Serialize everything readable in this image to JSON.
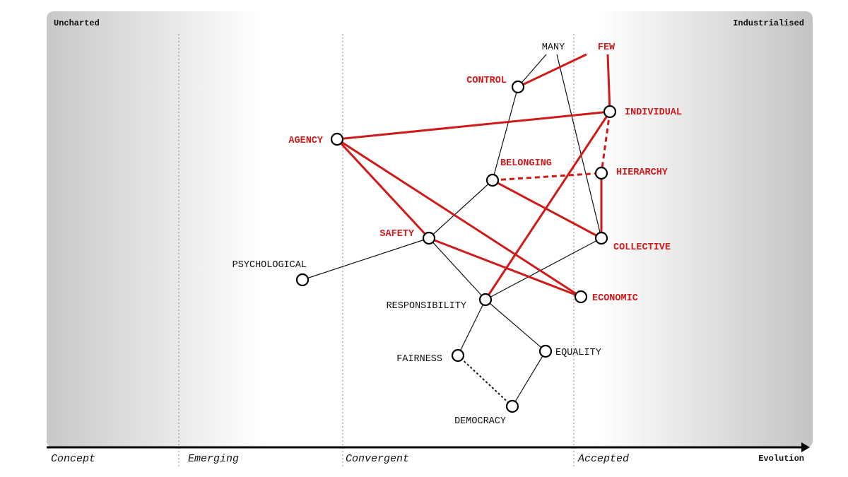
{
  "corners": {
    "left": "Uncharted",
    "right": "Industrialised"
  },
  "axis": {
    "label": "Evolution",
    "stages": [
      "Concept",
      "Emerging",
      "Convergent",
      "Accepted"
    ]
  },
  "colors": {
    "red": "#d01a1a",
    "black": "#111111"
  },
  "nodes": [
    {
      "id": "many",
      "label": "MANY",
      "color": "black",
      "marker": false
    },
    {
      "id": "few",
      "label": "FEW",
      "color": "red",
      "marker": false
    },
    {
      "id": "control",
      "label": "CONTROL",
      "color": "red",
      "marker": true
    },
    {
      "id": "individual",
      "label": "INDIVIDUAL",
      "color": "red",
      "marker": true
    },
    {
      "id": "agency",
      "label": "AGENCY",
      "color": "red",
      "marker": true
    },
    {
      "id": "belonging",
      "label": "BELONGING",
      "color": "red",
      "marker": true
    },
    {
      "id": "hierarchy",
      "label": "HIERARCHY",
      "color": "red",
      "marker": true
    },
    {
      "id": "safety",
      "label": "SAFETY",
      "color": "red",
      "marker": true
    },
    {
      "id": "collective",
      "label": "COLLECTIVE",
      "color": "red",
      "marker": true
    },
    {
      "id": "psychological",
      "label": "PSYCHOLOGICAL",
      "color": "black",
      "marker": true
    },
    {
      "id": "economic",
      "label": "ECONOMIC",
      "color": "red",
      "marker": true
    },
    {
      "id": "responsibility",
      "label": "RESPONSIBILITY",
      "color": "black",
      "marker": true
    },
    {
      "id": "fairness",
      "label": "FAIRNESS",
      "color": "black",
      "marker": true
    },
    {
      "id": "equality",
      "label": "EQUALITY",
      "color": "black",
      "marker": true
    },
    {
      "id": "democracy",
      "label": "DEMOCRACY",
      "color": "black",
      "marker": true
    }
  ],
  "links": [
    {
      "from": "many",
      "to": "control",
      "color": "black",
      "style": "solid"
    },
    {
      "from": "many",
      "to": "collective",
      "color": "black",
      "style": "solid"
    },
    {
      "from": "control",
      "to": "belonging",
      "color": "black",
      "style": "solid"
    },
    {
      "from": "belonging",
      "to": "safety",
      "color": "black",
      "style": "solid"
    },
    {
      "from": "safety",
      "to": "psychological",
      "color": "black",
      "style": "solid"
    },
    {
      "from": "safety",
      "to": "responsibility",
      "color": "black",
      "style": "solid"
    },
    {
      "from": "responsibility",
      "to": "collective",
      "color": "black",
      "style": "solid"
    },
    {
      "from": "responsibility",
      "to": "fairness",
      "color": "black",
      "style": "solid"
    },
    {
      "from": "responsibility",
      "to": "equality",
      "color": "black",
      "style": "solid"
    },
    {
      "from": "equality",
      "to": "democracy",
      "color": "black",
      "style": "solid"
    },
    {
      "from": "fairness",
      "to": "democracy",
      "color": "black",
      "style": "dashed"
    },
    {
      "from": "few",
      "to": "control",
      "color": "red",
      "style": "solid"
    },
    {
      "from": "few",
      "to": "individual",
      "color": "red",
      "style": "solid"
    },
    {
      "from": "individual",
      "to": "agency",
      "color": "red",
      "style": "solid"
    },
    {
      "from": "agency",
      "to": "safety",
      "color": "red",
      "style": "solid"
    },
    {
      "from": "agency",
      "to": "economic",
      "color": "red",
      "style": "solid"
    },
    {
      "from": "individual",
      "to": "hierarchy",
      "color": "red",
      "style": "dashed"
    },
    {
      "from": "belonging",
      "to": "hierarchy",
      "color": "red",
      "style": "dashed"
    },
    {
      "from": "belonging",
      "to": "collective",
      "color": "red",
      "style": "solid"
    },
    {
      "from": "hierarchy",
      "to": "collective",
      "color": "red",
      "style": "solid"
    },
    {
      "from": "individual",
      "to": "responsibility",
      "color": "red",
      "style": "solid"
    },
    {
      "from": "safety",
      "to": "economic",
      "color": "red",
      "style": "solid"
    }
  ]
}
